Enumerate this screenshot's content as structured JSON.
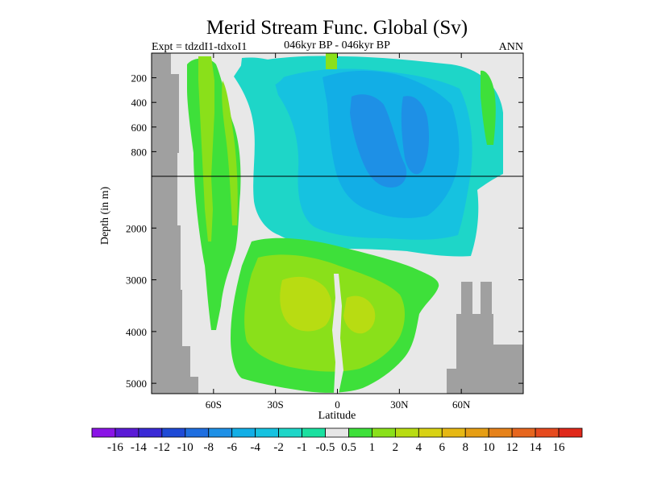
{
  "chart_data": {
    "type": "heatmap",
    "title": "Merid Stream Func. Global (Sv)",
    "subtitle_left": "Expt = tdzdI1-tdxoI1",
    "subtitle_center": "046kyr BP - 046kyr BP",
    "subtitle_right": "ANN",
    "xlabel": "Latitude",
    "ylabel": "Depth (in m)",
    "x_ticks": [
      "60S",
      "30S",
      "0",
      "30N",
      "60N"
    ],
    "x_tick_values": [
      -60,
      -30,
      0,
      30,
      60
    ],
    "xlim": [
      -90,
      90
    ],
    "y_ticks_upper": [
      "200",
      "400",
      "600",
      "800"
    ],
    "y_ticks_lower": [
      "2000",
      "3000",
      "4000",
      "5000"
    ],
    "y_upper_range": [
      0,
      1000
    ],
    "y_lower_range": [
      1000,
      5200
    ],
    "colorbar_labels": [
      "-16",
      "-14",
      "-12",
      "-10",
      "-8",
      "-6",
      "-4",
      "-2",
      "-1",
      "-0.5",
      "0.5",
      "1",
      "2",
      "4",
      "6",
      "8",
      "10",
      "12",
      "14",
      "16"
    ],
    "colorbar_colors": [
      "#8a14e6",
      "#5a1ad6",
      "#3a2ad6",
      "#1e4ad6",
      "#1e6ee0",
      "#1e90e6",
      "#12aee6",
      "#16c2e0",
      "#1ed6c8",
      "#1ae0a0",
      "#e6e6e6",
      "#3ee03a",
      "#8ae01a",
      "#b8dc12",
      "#d8d214",
      "#e6b814",
      "#e69e14",
      "#e6821a",
      "#e6661e",
      "#e64a1e",
      "#e0281a"
    ],
    "missing_color": "#a0a0a0",
    "background_color": "#e8e8e8"
  }
}
